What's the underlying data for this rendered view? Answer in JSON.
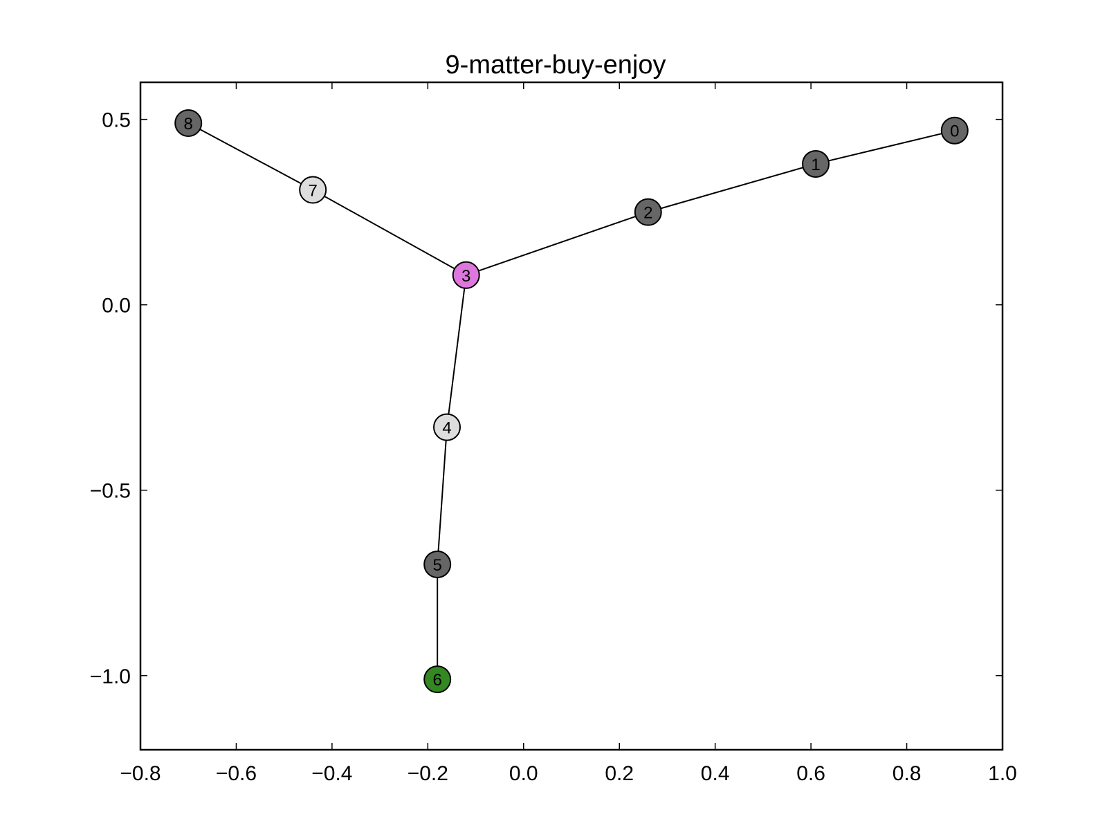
{
  "chart_data": {
    "type": "graph",
    "title": "9-matter-buy-enjoy",
    "xlabel": "",
    "ylabel": "",
    "xlim": [
      -0.8,
      1.0
    ],
    "ylim": [
      -1.2,
      0.6
    ],
    "x_ticks": [
      -0.8,
      -0.6,
      -0.4,
      -0.2,
      0.0,
      0.2,
      0.4,
      0.6,
      0.8,
      1.0
    ],
    "x_tick_labels": [
      "−0.8",
      "−0.6",
      "−0.4",
      "−0.2",
      "0.0",
      "0.2",
      "0.4",
      "0.6",
      "0.8",
      "1.0"
    ],
    "y_ticks": [
      0.5,
      0.0,
      -0.5,
      -1.0
    ],
    "y_tick_labels": [
      "0.5",
      "0.0",
      "−0.5",
      "−1.0"
    ],
    "grid": false,
    "nodes": [
      {
        "id": "0",
        "x": 0.9,
        "y": 0.47,
        "color": "#666666"
      },
      {
        "id": "1",
        "x": 0.61,
        "y": 0.38,
        "color": "#666666"
      },
      {
        "id": "2",
        "x": 0.26,
        "y": 0.25,
        "color": "#666666"
      },
      {
        "id": "3",
        "x": -0.12,
        "y": 0.08,
        "color": "#dd77dd"
      },
      {
        "id": "4",
        "x": -0.16,
        "y": -0.33,
        "color": "#dddddd"
      },
      {
        "id": "5",
        "x": -0.18,
        "y": -0.7,
        "color": "#666666"
      },
      {
        "id": "6",
        "x": -0.18,
        "y": -1.01,
        "color": "#338822"
      },
      {
        "id": "7",
        "x": -0.44,
        "y": 0.31,
        "color": "#dddddd"
      },
      {
        "id": "8",
        "x": -0.7,
        "y": 0.49,
        "color": "#666666"
      }
    ],
    "edges": [
      [
        "0",
        "1"
      ],
      [
        "1",
        "2"
      ],
      [
        "2",
        "3"
      ],
      [
        "3",
        "4"
      ],
      [
        "4",
        "5"
      ],
      [
        "5",
        "6"
      ],
      [
        "3",
        "7"
      ],
      [
        "7",
        "8"
      ]
    ]
  }
}
